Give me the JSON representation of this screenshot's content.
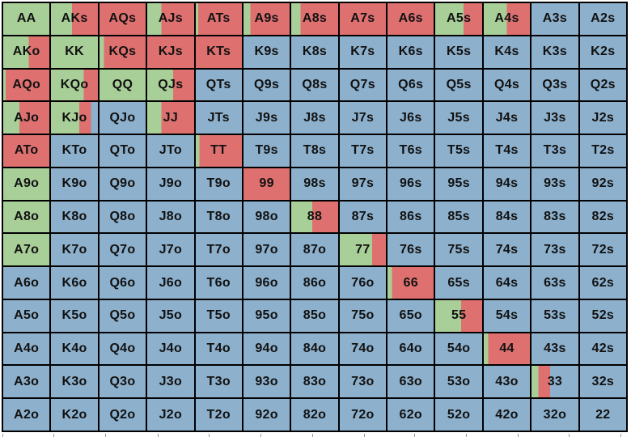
{
  "colors": {
    "green": "#a9cf98",
    "red": "#de7170",
    "blue": "#8db0cc",
    "border": "#000000"
  },
  "rows": [
    [
      [
        "AA",
        1,
        0
      ],
      [
        "AKs",
        0.45,
        0.55
      ],
      [
        "AQs",
        0,
        1
      ],
      [
        "AJs",
        0.3,
        0.7
      ],
      [
        "ATs",
        0.05,
        0.95
      ],
      [
        "A9s",
        0.15,
        0.85
      ],
      [
        "A8s",
        0.2,
        0.8
      ],
      [
        "A7s",
        0,
        1
      ],
      [
        "A6s",
        0,
        1
      ],
      [
        "A5s",
        0.6,
        0.4
      ],
      [
        "A4s",
        0.5,
        0.5
      ],
      [
        "A3s",
        0,
        0
      ],
      [
        "A2s",
        0,
        0
      ]
    ],
    [
      [
        "AKo",
        0.55,
        0.45
      ],
      [
        "KK",
        1,
        0
      ],
      [
        "KQs",
        0.1,
        0.9
      ],
      [
        "KJs",
        0,
        1
      ],
      [
        "KTs",
        0,
        1
      ],
      [
        "K9s",
        0,
        0
      ],
      [
        "K8s",
        0,
        0
      ],
      [
        "K7s",
        0,
        0
      ],
      [
        "K6s",
        0,
        0
      ],
      [
        "K5s",
        0,
        0
      ],
      [
        "K4s",
        0,
        0
      ],
      [
        "K3s",
        0,
        0
      ],
      [
        "K2s",
        0,
        0
      ]
    ],
    [
      [
        "AQo",
        0.05,
        0.95
      ],
      [
        "KQo",
        0.7,
        0.3
      ],
      [
        "QQ",
        1,
        0
      ],
      [
        "QJs",
        0.55,
        0.45
      ],
      [
        "QTs",
        0,
        0
      ],
      [
        "Q9s",
        0,
        0
      ],
      [
        "Q8s",
        0,
        0
      ],
      [
        "Q7s",
        0,
        0
      ],
      [
        "Q6s",
        0,
        0
      ],
      [
        "Q5s",
        0,
        0
      ],
      [
        "Q4s",
        0,
        0
      ],
      [
        "Q3s",
        0,
        0
      ],
      [
        "Q2s",
        0,
        0
      ]
    ],
    [
      [
        "AJo",
        0.35,
        0.65
      ],
      [
        "KJo",
        0.6,
        0.25
      ],
      [
        "QJo",
        0,
        0
      ],
      [
        "JJ",
        0.3,
        0.7
      ],
      [
        "JTs",
        0,
        0
      ],
      [
        "J9s",
        0,
        0
      ],
      [
        "J8s",
        0,
        0
      ],
      [
        "J7s",
        0,
        0
      ],
      [
        "J6s",
        0,
        0
      ],
      [
        "J5s",
        0,
        0
      ],
      [
        "J4s",
        0,
        0
      ],
      [
        "J3s",
        0,
        0
      ],
      [
        "J2s",
        0,
        0
      ]
    ],
    [
      [
        "ATo",
        0,
        1
      ],
      [
        "KTo",
        0,
        0
      ],
      [
        "QTo",
        0,
        0
      ],
      [
        "JTo",
        0,
        0
      ],
      [
        "TT",
        0.08,
        0.92
      ],
      [
        "T9s",
        0,
        0
      ],
      [
        "T8s",
        0,
        0
      ],
      [
        "T7s",
        0,
        0
      ],
      [
        "T6s",
        0,
        0
      ],
      [
        "T5s",
        0,
        0
      ],
      [
        "T4s",
        0,
        0
      ],
      [
        "T3s",
        0,
        0
      ],
      [
        "T2s",
        0,
        0
      ]
    ],
    [
      [
        "A9o",
        1,
        0
      ],
      [
        "K9o",
        0,
        0
      ],
      [
        "Q9o",
        0,
        0
      ],
      [
        "J9o",
        0,
        0
      ],
      [
        "T9o",
        0,
        0
      ],
      [
        "99",
        0,
        1
      ],
      [
        "98s",
        0,
        0
      ],
      [
        "97s",
        0,
        0
      ],
      [
        "96s",
        0,
        0
      ],
      [
        "95s",
        0,
        0
      ],
      [
        "94s",
        0,
        0
      ],
      [
        "93s",
        0,
        0
      ],
      [
        "92s",
        0,
        0
      ]
    ],
    [
      [
        "A8o",
        1,
        0
      ],
      [
        "K8o",
        0,
        0
      ],
      [
        "Q8o",
        0,
        0
      ],
      [
        "J8o",
        0,
        0
      ],
      [
        "T8o",
        0,
        0
      ],
      [
        "98o",
        0,
        0
      ],
      [
        "88",
        0.45,
        0.55
      ],
      [
        "87s",
        0,
        0
      ],
      [
        "86s",
        0,
        0
      ],
      [
        "85s",
        0,
        0
      ],
      [
        "84s",
        0,
        0
      ],
      [
        "83s",
        0,
        0
      ],
      [
        "82s",
        0,
        0
      ]
    ],
    [
      [
        "A7o",
        1,
        0
      ],
      [
        "K7o",
        0,
        0
      ],
      [
        "Q7o",
        0,
        0
      ],
      [
        "J7o",
        0,
        0
      ],
      [
        "T7o",
        0,
        0
      ],
      [
        "97o",
        0,
        0
      ],
      [
        "87o",
        0,
        0
      ],
      [
        "77",
        0.7,
        0.3
      ],
      [
        "76s",
        0,
        0
      ],
      [
        "75s",
        0,
        0
      ],
      [
        "74s",
        0,
        0
      ],
      [
        "73s",
        0,
        0
      ],
      [
        "72s",
        0,
        0
      ]
    ],
    [
      [
        "A6o",
        0,
        0
      ],
      [
        "K6o",
        0,
        0
      ],
      [
        "Q6o",
        0,
        0
      ],
      [
        "J6o",
        0,
        0
      ],
      [
        "T6o",
        0,
        0
      ],
      [
        "96o",
        0,
        0
      ],
      [
        "86o",
        0,
        0
      ],
      [
        "76o",
        0,
        0
      ],
      [
        "66",
        0.1,
        0.9
      ],
      [
        "65s",
        0,
        0
      ],
      [
        "64s",
        0,
        0
      ],
      [
        "63s",
        0,
        0
      ],
      [
        "62s",
        0,
        0
      ]
    ],
    [
      [
        "A5o",
        0,
        0
      ],
      [
        "K5o",
        0,
        0
      ],
      [
        "Q5o",
        0,
        0
      ],
      [
        "J5o",
        0,
        0
      ],
      [
        "T5o",
        0,
        0
      ],
      [
        "95o",
        0,
        0
      ],
      [
        "85o",
        0,
        0
      ],
      [
        "75o",
        0,
        0
      ],
      [
        "65o",
        0,
        0
      ],
      [
        "55",
        0.55,
        0.45
      ],
      [
        "54s",
        0,
        0
      ],
      [
        "53s",
        0,
        0
      ],
      [
        "52s",
        0,
        0
      ]
    ],
    [
      [
        "A4o",
        0,
        0
      ],
      [
        "K4o",
        0,
        0
      ],
      [
        "Q4o",
        0,
        0
      ],
      [
        "J4o",
        0,
        0
      ],
      [
        "T4o",
        0,
        0
      ],
      [
        "94o",
        0,
        0
      ],
      [
        "84o",
        0,
        0
      ],
      [
        "74o",
        0,
        0
      ],
      [
        "64o",
        0,
        0
      ],
      [
        "54o",
        0,
        0
      ],
      [
        "44",
        0.1,
        0.9
      ],
      [
        "43s",
        0,
        0
      ],
      [
        "42s",
        0,
        0
      ]
    ],
    [
      [
        "A3o",
        0,
        0
      ],
      [
        "K3o",
        0,
        0
      ],
      [
        "Q3o",
        0,
        0
      ],
      [
        "J3o",
        0,
        0
      ],
      [
        "T3o",
        0,
        0
      ],
      [
        "93o",
        0,
        0
      ],
      [
        "83o",
        0,
        0
      ],
      [
        "73o",
        0,
        0
      ],
      [
        "63o",
        0,
        0
      ],
      [
        "53o",
        0,
        0
      ],
      [
        "43o",
        0,
        0
      ],
      [
        "33",
        0.15,
        0.25
      ],
      [
        "32s",
        0,
        0
      ]
    ],
    [
      [
        "A2o",
        0,
        0
      ],
      [
        "K2o",
        0,
        0
      ],
      [
        "Q2o",
        0,
        0
      ],
      [
        "J2o",
        0,
        0
      ],
      [
        "T2o",
        0,
        0
      ],
      [
        "92o",
        0,
        0
      ],
      [
        "82o",
        0,
        0
      ],
      [
        "72o",
        0,
        0
      ],
      [
        "62o",
        0,
        0
      ],
      [
        "52o",
        0,
        0
      ],
      [
        "42o",
        0,
        0
      ],
      [
        "32o",
        0,
        0
      ],
      [
        "22",
        0,
        0
      ]
    ]
  ]
}
